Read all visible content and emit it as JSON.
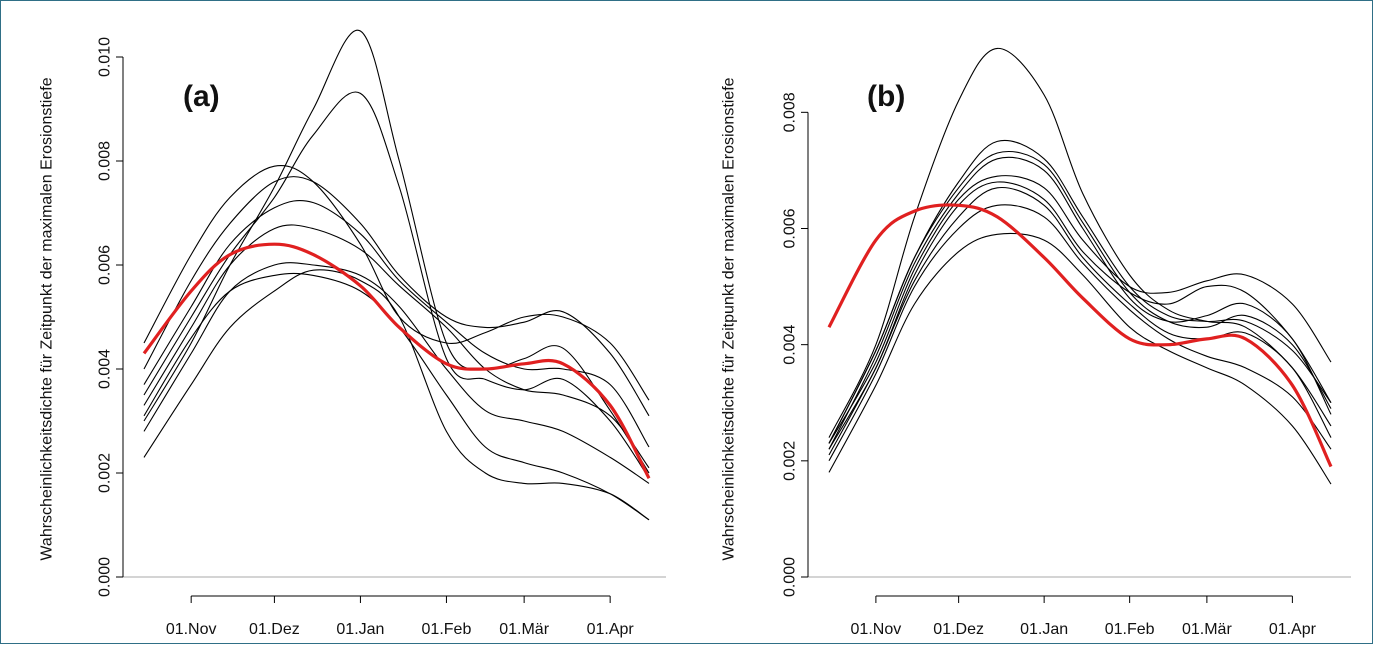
{
  "chart_data": [
    {
      "type": "line",
      "panel_label": "(a)",
      "ylabel": "Wahrscheinlichkeitsdichte für Zeitpunkt der maximalen Erosionstiefe",
      "xlabel": "",
      "x_ticks": [
        "01.Nov",
        "01.Dez",
        "01.Jan",
        "01.Feb",
        "01.Mär",
        "01.Apr"
      ],
      "y_ticks": [
        "0.000",
        "0.002",
        "0.004",
        "0.006",
        "0.008",
        "0.010"
      ],
      "ylim": [
        0,
        0.0105
      ],
      "x_domain": [
        "15.Okt",
        "15.Apr"
      ],
      "grid": false,
      "reference_line_y": 0,
      "colors": {
        "curves": "#000000",
        "mean": "#e02020",
        "zero_line": "#aaaaaa"
      },
      "x": [
        "15.Okt",
        "01.Nov",
        "15.Nov",
        "01.Dez",
        "15.Dez",
        "01.Jan",
        "15.Jan",
        "01.Feb",
        "15.Feb",
        "01.Mär",
        "15.Mär",
        "01.Apr",
        "15.Apr"
      ],
      "series": [
        {
          "values": [
            0.003,
            0.0045,
            0.006,
            0.0075,
            0.009,
            0.0105,
            0.008,
            0.0045,
            0.004,
            0.0042,
            0.0044,
            0.0032,
            0.002
          ]
        },
        {
          "values": [
            0.0035,
            0.005,
            0.0062,
            0.0073,
            0.0085,
            0.0093,
            0.0075,
            0.0042,
            0.0038,
            0.0036,
            0.0038,
            0.003,
            0.0019
          ]
        },
        {
          "values": [
            0.0045,
            0.0062,
            0.0073,
            0.0079,
            0.0076,
            0.0064,
            0.005,
            0.0045,
            0.0047,
            0.005,
            0.005,
            0.0045,
            0.0034
          ]
        },
        {
          "values": [
            0.004,
            0.0057,
            0.0068,
            0.0076,
            0.0076,
            0.0068,
            0.0058,
            0.005,
            0.0048,
            0.0049,
            0.0051,
            0.0043,
            0.0031
          ]
        },
        {
          "values": [
            0.0037,
            0.0052,
            0.0064,
            0.0071,
            0.0072,
            0.0066,
            0.0057,
            0.0049,
            0.0043,
            0.004,
            0.004,
            0.0037,
            0.0025
          ]
        },
        {
          "values": [
            0.0033,
            0.0048,
            0.006,
            0.0067,
            0.0067,
            0.0063,
            0.0056,
            0.0048,
            0.004,
            0.0036,
            0.0035,
            0.0031,
            0.0021
          ]
        },
        {
          "values": [
            0.0028,
            0.0043,
            0.0055,
            0.006,
            0.006,
            0.0058,
            0.0052,
            0.004,
            0.0032,
            0.003,
            0.0028,
            0.0023,
            0.0018
          ]
        },
        {
          "values": [
            0.0031,
            0.0046,
            0.0055,
            0.0058,
            0.0058,
            0.0055,
            0.0048,
            0.0035,
            0.0025,
            0.0022,
            0.002,
            0.0016,
            0.0011
          ]
        },
        {
          "values": [
            0.0023,
            0.0037,
            0.0048,
            0.0055,
            0.0059,
            0.0057,
            0.005,
            0.0028,
            0.002,
            0.0018,
            0.0018,
            0.0016,
            0.0011
          ]
        }
      ],
      "mean_series": {
        "values": [
          0.0043,
          0.0055,
          0.0062,
          0.0064,
          0.0062,
          0.0056,
          0.0048,
          0.0041,
          0.004,
          0.0041,
          0.0041,
          0.0033,
          0.0019
        ]
      }
    },
    {
      "type": "line",
      "panel_label": "(b)",
      "ylabel": "Wahrscheinlichkeitsdichte für Zeitpunkt der maximalen Erosionstiefe",
      "xlabel": "",
      "x_ticks": [
        "01.Nov",
        "01.Dez",
        "01.Jan",
        "01.Feb",
        "01.Mär",
        "01.Apr"
      ],
      "y_ticks": [
        "0.000",
        "0.002",
        "0.004",
        "0.006",
        "0.008"
      ],
      "ylim": [
        0,
        0.0094
      ],
      "x_domain": [
        "15.Okt",
        "15.Apr"
      ],
      "grid": false,
      "reference_line_y": 0,
      "colors": {
        "curves": "#000000",
        "mean": "#e02020",
        "zero_line": "#aaaaaa"
      },
      "x": [
        "15.Okt",
        "01.Nov",
        "15.Nov",
        "01.Dez",
        "15.Dez",
        "01.Jan",
        "15.Jan",
        "01.Feb",
        "15.Feb",
        "01.Mär",
        "15.Mär",
        "01.Apr",
        "15.Apr"
      ],
      "series": [
        {
          "values": [
            0.0024,
            0.004,
            0.0062,
            0.0082,
            0.0091,
            0.0083,
            0.0066,
            0.0052,
            0.0046,
            0.0044,
            0.0043,
            0.0036,
            0.0026
          ]
        },
        {
          "values": [
            0.0023,
            0.0039,
            0.0055,
            0.0068,
            0.0075,
            0.0072,
            0.0062,
            0.005,
            0.0045,
            0.0044,
            0.0044,
            0.0039,
            0.003
          ]
        },
        {
          "values": [
            0.0023,
            0.0039,
            0.0055,
            0.0067,
            0.0073,
            0.0071,
            0.0061,
            0.0049,
            0.0044,
            0.0043,
            0.0045,
            0.004,
            0.0029
          ]
        },
        {
          "values": [
            0.0022,
            0.0038,
            0.0054,
            0.0066,
            0.0072,
            0.007,
            0.006,
            0.0048,
            0.0044,
            0.0045,
            0.0047,
            0.0041,
            0.0028
          ]
        },
        {
          "values": [
            0.0023,
            0.0037,
            0.0053,
            0.0065,
            0.0069,
            0.0067,
            0.0058,
            0.005,
            0.0049,
            0.0051,
            0.0052,
            0.0047,
            0.0037
          ]
        },
        {
          "values": [
            0.0022,
            0.0036,
            0.0052,
            0.0064,
            0.0068,
            0.0065,
            0.0056,
            0.0049,
            0.0047,
            0.005,
            0.0049,
            0.0041,
            0.003
          ]
        },
        {
          "values": [
            0.0021,
            0.0036,
            0.0051,
            0.0062,
            0.0067,
            0.0064,
            0.0055,
            0.0047,
            0.0042,
            0.0041,
            0.0042,
            0.0036,
            0.0024
          ]
        },
        {
          "values": [
            0.002,
            0.0035,
            0.005,
            0.006,
            0.0064,
            0.0062,
            0.0054,
            0.0046,
            0.0041,
            0.0038,
            0.0036,
            0.0031,
            0.0022
          ]
        },
        {
          "values": [
            0.0018,
            0.0033,
            0.0047,
            0.0056,
            0.0059,
            0.0058,
            0.0052,
            0.0043,
            0.0039,
            0.0036,
            0.0033,
            0.0026,
            0.0016
          ]
        }
      ],
      "mean_series": {
        "values": [
          0.0043,
          0.0058,
          0.0063,
          0.0064,
          0.0062,
          0.0055,
          0.0048,
          0.0041,
          0.004,
          0.0041,
          0.0041,
          0.0033,
          0.0019
        ]
      }
    }
  ]
}
